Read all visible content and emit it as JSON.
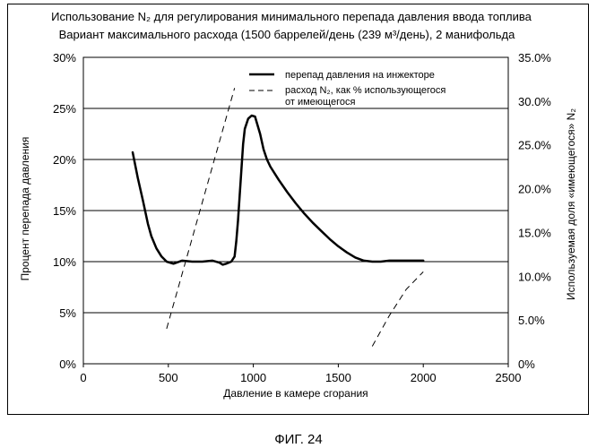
{
  "chart_data": {
    "type": "line",
    "title": "Использование N₂ для регулирования минимального перепада давления ввода топлива",
    "subtitle": "Вариант максимального расхода (1500 баррелей/день (239 м³/день), 2 манифольда",
    "xlabel": "Давление в камере сгорания",
    "ylabel": "Процент перепада давления",
    "y2label": "Используемая доля «имеющегося» N₂",
    "xlim": [
      0,
      2500
    ],
    "ylim": [
      0,
      30
    ],
    "y2lim": [
      0,
      35
    ],
    "x_ticks": [
      "0",
      "500",
      "1000",
      "1500",
      "2000",
      "2500"
    ],
    "y_ticks": [
      "0%",
      "5%",
      "10%",
      "15%",
      "20%",
      "25%",
      "30%"
    ],
    "y2_ticks": [
      "0%",
      "5.0%",
      "10.0%",
      "15.0%",
      "20.0%",
      "25.0%",
      "30.0%",
      "35.0%"
    ],
    "grid": "horizontal",
    "legend": "top-right",
    "series": [
      {
        "name": "перепад давления на инжекторе",
        "axis": "left",
        "style": "solid",
        "x": [
          290,
          320,
          350,
          380,
          400,
          430,
          460,
          490,
          530,
          580,
          640,
          700,
          760,
          800,
          820,
          840,
          870,
          890,
          900,
          910,
          920,
          930,
          940,
          950,
          970,
          990,
          1010,
          1040,
          1060,
          1080,
          1100,
          1150,
          1200,
          1250,
          1300,
          1350,
          1400,
          1450,
          1500,
          1550,
          1600,
          1650,
          1700,
          1750,
          1800,
          1850,
          1900,
          1950,
          2000
        ],
        "y": [
          20.7,
          18.2,
          16.0,
          13.7,
          12.5,
          11.3,
          10.5,
          10.0,
          9.8,
          10.1,
          10.0,
          10.0,
          10.1,
          9.9,
          9.7,
          9.8,
          10.0,
          10.5,
          12.0,
          14.0,
          16.5,
          19.0,
          21.5,
          23.0,
          24.0,
          24.3,
          24.2,
          22.5,
          21.0,
          20.0,
          19.3,
          18.0,
          16.8,
          15.7,
          14.7,
          13.8,
          13.0,
          12.2,
          11.5,
          10.9,
          10.4,
          10.1,
          10.0,
          10.0,
          10.1,
          10.1,
          10.1,
          10.1,
          10.1
        ]
      },
      {
        "name": "расход N₂, как % использующегося от имеющегося",
        "axis": "right",
        "style": "dashed",
        "segments": [
          {
            "x": [
              490,
              890
            ],
            "y": [
              4.0,
              31.5
            ]
          },
          {
            "x": [
              1700,
              1800,
              1900,
              2000
            ],
            "y": [
              2.0,
              5.5,
              8.5,
              10.5
            ]
          }
        ]
      }
    ]
  },
  "figure_caption": "ФИГ. 24"
}
